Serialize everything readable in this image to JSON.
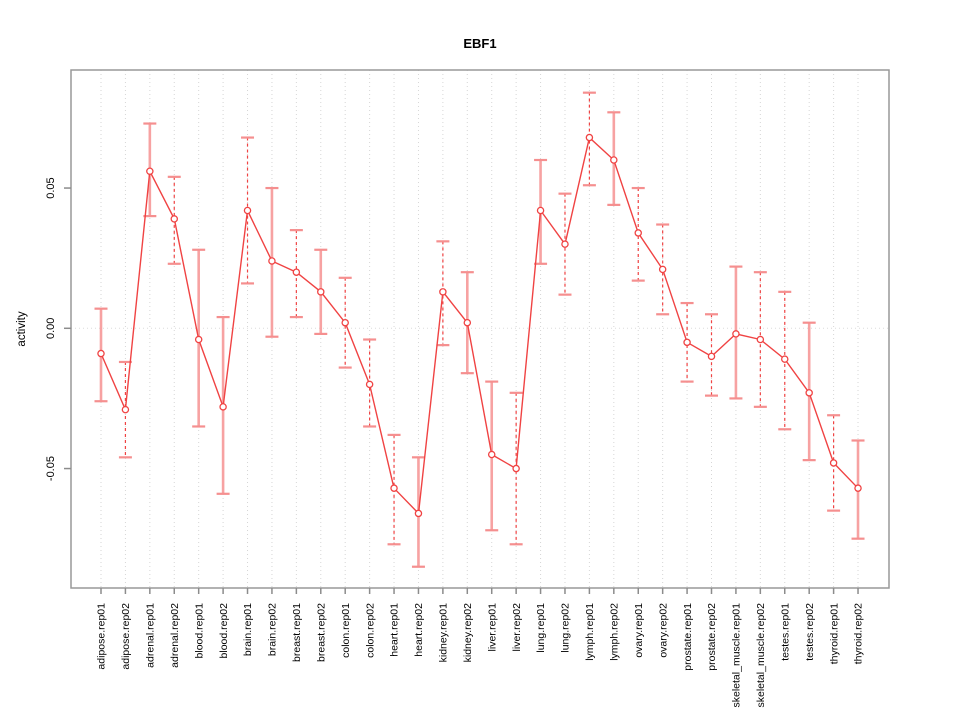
{
  "chart_data": {
    "type": "line",
    "title": "EBF1",
    "ylabel": "activity",
    "xlabel": "",
    "legend": "none",
    "grid": "vertical dotted gridline at every category; dotted horizontal line at y=0",
    "ylim": [
      -0.092,
      0.092
    ],
    "yticks": {
      "values": [
        0.05,
        0.0,
        -0.05
      ],
      "labels": [
        "0.05",
        "0.00",
        "-0.05"
      ]
    },
    "categories": [
      "adipose.rep01",
      "adipose.rep02",
      "adrenal.rep01",
      "adrenal.rep02",
      "blood.rep01",
      "blood.rep02",
      "brain.rep01",
      "brain.rep02",
      "breast.rep01",
      "breast.rep02",
      "colon.rep01",
      "colon.rep02",
      "heart.rep01",
      "heart.rep02",
      "kidney.rep01",
      "kidney.rep02",
      "liver.rep01",
      "liver.rep02",
      "lung.rep01",
      "lung.rep02",
      "lymph.rep01",
      "lymph.rep02",
      "ovary.rep01",
      "ovary.rep02",
      "prostate.rep01",
      "prostate.rep02",
      "skeletal_muscle.rep01",
      "skeletal_muscle.rep02",
      "testes.rep01",
      "testes.rep02",
      "thyroid.rep01",
      "thyroid.rep02"
    ],
    "series": [
      {
        "name": "activity",
        "marker": "open-circle",
        "values": [
          -0.009,
          -0.029,
          0.056,
          0.039,
          -0.004,
          -0.028,
          0.042,
          0.024,
          0.02,
          0.013,
          0.002,
          -0.02,
          -0.057,
          -0.066,
          0.013,
          0.002,
          -0.045,
          -0.05,
          0.042,
          0.03,
          0.068,
          0.06,
          0.034,
          0.021,
          -0.005,
          -0.01,
          -0.002,
          -0.004,
          -0.011,
          -0.023,
          -0.048,
          -0.057
        ],
        "err_lo": [
          -0.026,
          -0.046,
          0.04,
          0.023,
          -0.035,
          -0.059,
          0.016,
          -0.003,
          0.004,
          -0.002,
          -0.014,
          -0.035,
          -0.077,
          -0.085,
          -0.006,
          -0.016,
          -0.072,
          -0.077,
          0.023,
          0.012,
          0.051,
          0.044,
          0.017,
          0.005,
          -0.019,
          -0.024,
          -0.025,
          -0.028,
          -0.036,
          -0.047,
          -0.065,
          -0.075
        ],
        "err_hi": [
          0.007,
          -0.012,
          0.073,
          0.054,
          0.028,
          0.004,
          0.068,
          0.05,
          0.035,
          0.028,
          0.018,
          -0.004,
          -0.038,
          -0.046,
          0.031,
          0.02,
          -0.019,
          -0.023,
          0.06,
          0.048,
          0.084,
          0.077,
          0.05,
          0.037,
          0.009,
          0.005,
          0.022,
          0.02,
          0.013,
          0.002,
          -0.031,
          -0.04
        ],
        "stem_styles": [
          "solid",
          "dashed",
          "solid",
          "dashed",
          "solid",
          "solid",
          "dashed",
          "solid",
          "dashed",
          "solid",
          "dashed",
          "dashed",
          "dashed",
          "solid",
          "dashed",
          "solid",
          "solid",
          "dashed",
          "solid",
          "dashed",
          "dashed",
          "solid",
          "dashed",
          "dashed",
          "dashed",
          "dashed",
          "solid",
          "dashed",
          "dashed",
          "solid",
          "dashed",
          "solid"
        ]
      }
    ],
    "colors": {
      "line": "#f04343",
      "marker_stroke": "#f04343",
      "error_bar_light": "#f7a2a2",
      "error_bar_cap": "#f58f8f",
      "gridline": "#d6d6d6",
      "zero_line": "#dcdcdc",
      "box": "#999999",
      "tick": "#8c8c8c",
      "text": "#000000"
    }
  }
}
